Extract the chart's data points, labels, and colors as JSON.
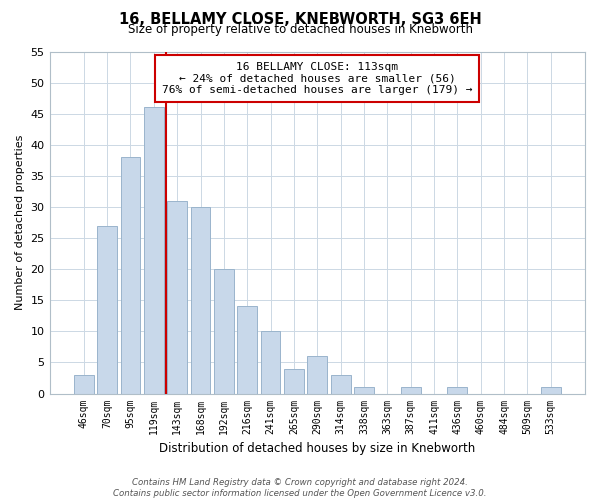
{
  "title": "16, BELLAMY CLOSE, KNEBWORTH, SG3 6EH",
  "subtitle": "Size of property relative to detached houses in Knebworth",
  "xlabel": "Distribution of detached houses by size in Knebworth",
  "ylabel": "Number of detached properties",
  "bar_labels": [
    "46sqm",
    "70sqm",
    "95sqm",
    "119sqm",
    "143sqm",
    "168sqm",
    "192sqm",
    "216sqm",
    "241sqm",
    "265sqm",
    "290sqm",
    "314sqm",
    "338sqm",
    "363sqm",
    "387sqm",
    "411sqm",
    "436sqm",
    "460sqm",
    "484sqm",
    "509sqm",
    "533sqm"
  ],
  "bar_heights": [
    3,
    27,
    38,
    46,
    31,
    30,
    20,
    14,
    10,
    4,
    6,
    3,
    1,
    0,
    1,
    0,
    1,
    0,
    0,
    0,
    1
  ],
  "bar_color": "#c8d8ea",
  "bar_edge_color": "#9ab4cc",
  "vline_x_index": 3,
  "vline_color": "#cc0000",
  "ylim": [
    0,
    55
  ],
  "yticks": [
    0,
    5,
    10,
    15,
    20,
    25,
    30,
    35,
    40,
    45,
    50,
    55
  ],
  "annotation_line1": "16 BELLAMY CLOSE: 113sqm",
  "annotation_line2": "← 24% of detached houses are smaller (56)",
  "annotation_line3": "76% of semi-detached houses are larger (179) →",
  "footer_text": "Contains HM Land Registry data © Crown copyright and database right 2024.\nContains public sector information licensed under the Open Government Licence v3.0.",
  "background_color": "#ffffff",
  "grid_color": "#ccd8e4"
}
